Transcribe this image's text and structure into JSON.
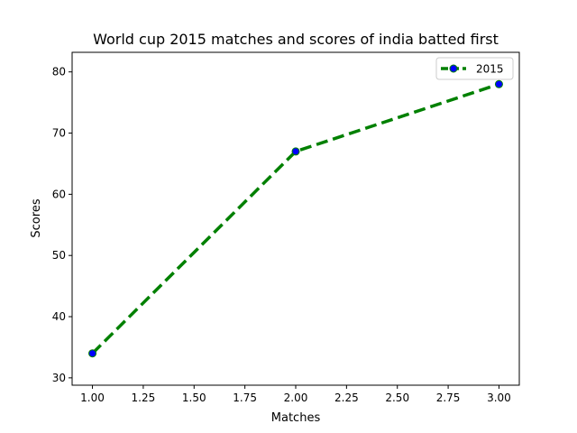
{
  "chart_data": {
    "type": "line",
    "title": "World cup 2015 matches and scores of india batted first",
    "xlabel": "Matches",
    "ylabel": "Scores",
    "xlim": [
      0.9,
      3.1
    ],
    "ylim": [
      28.8,
      83.2
    ],
    "xticks": [
      1.0,
      1.25,
      1.5,
      1.75,
      2.0,
      2.25,
      2.5,
      2.75,
      3.0
    ],
    "xtick_labels": [
      "1.00",
      "1.25",
      "1.50",
      "1.75",
      "2.00",
      "2.25",
      "2.50",
      "2.75",
      "3.00"
    ],
    "yticks": [
      30,
      40,
      50,
      60,
      70,
      80
    ],
    "ytick_labels": [
      "30",
      "40",
      "50",
      "60",
      "70",
      "80"
    ],
    "grid": false,
    "legend_position": "top-right",
    "series": [
      {
        "name": "2015",
        "x": [
          1,
          2,
          3
        ],
        "y": [
          34,
          67,
          78
        ],
        "line_color": "#008000",
        "line_style": "dashed",
        "marker": "circle",
        "marker_face_color": "#0000ff"
      }
    ]
  }
}
